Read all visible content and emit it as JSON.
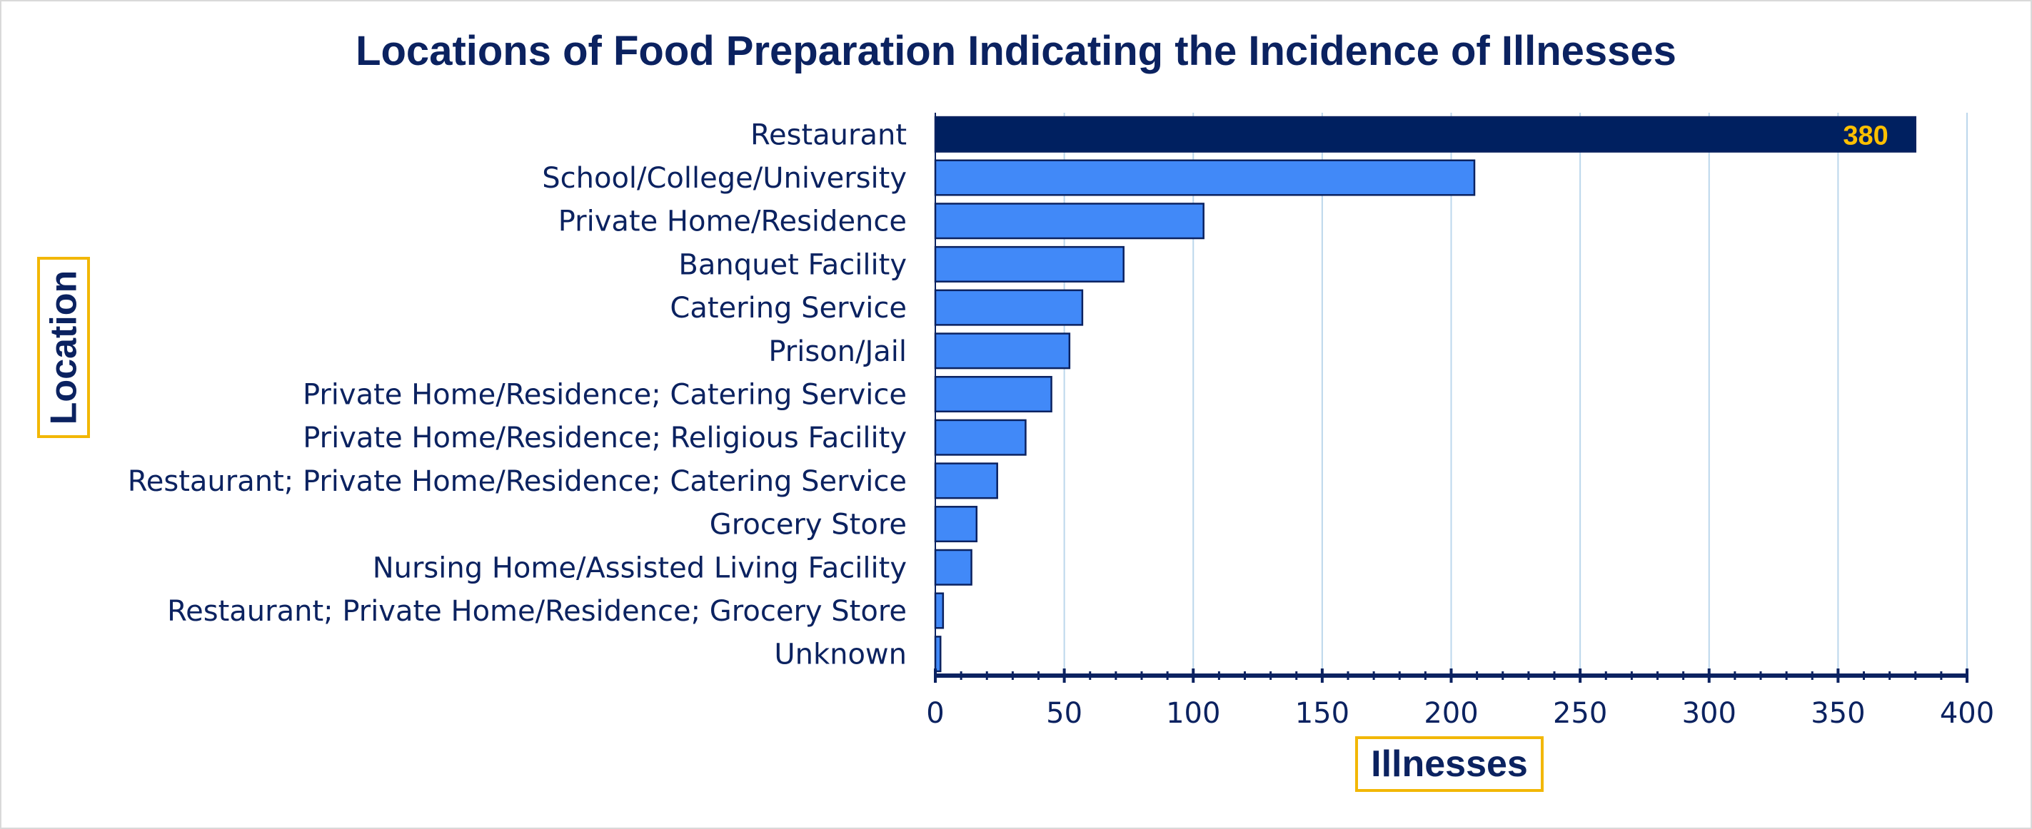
{
  "chart_data": {
    "type": "bar",
    "orientation": "horizontal",
    "title": "Locations of Food Preparation Indicating the Incidence of Illnesses",
    "xlabel": "Illnesses",
    "ylabel": "Location",
    "xlim": [
      0,
      400
    ],
    "x_ticks": [
      "0",
      "50",
      "100",
      "150",
      "200",
      "250",
      "300",
      "350",
      "400"
    ],
    "grid": true,
    "categories": [
      "Restaurant",
      "School/College/University",
      "Private Home/Residence",
      "Banquet Facility",
      "Catering Service",
      "Prison/Jail",
      "Private Home/Residence; Catering Service",
      "Private Home/Residence; Religious Facility",
      "Restaurant; Private Home/Residence; Catering Service",
      "Grocery Store",
      "Nursing Home/Assisted Living Facility",
      "Restaurant; Private Home/Residence; Grocery Store",
      "Unknown"
    ],
    "values": [
      380,
      209,
      104,
      73,
      57,
      52,
      45,
      35,
      24,
      16,
      14,
      3,
      2
    ],
    "highlight_index": 0,
    "data_labels": [
      {
        "index": 0,
        "text": "380"
      }
    ],
    "colors": {
      "highlight_bar": "#002060",
      "bar": "#4189f8",
      "bar_border": "#0b2260",
      "grid": "#bcd7ec",
      "axis": "#0b2260",
      "text": "#0b2260",
      "data_label": "#ffc000",
      "label_box_border": "#f2b705"
    }
  }
}
